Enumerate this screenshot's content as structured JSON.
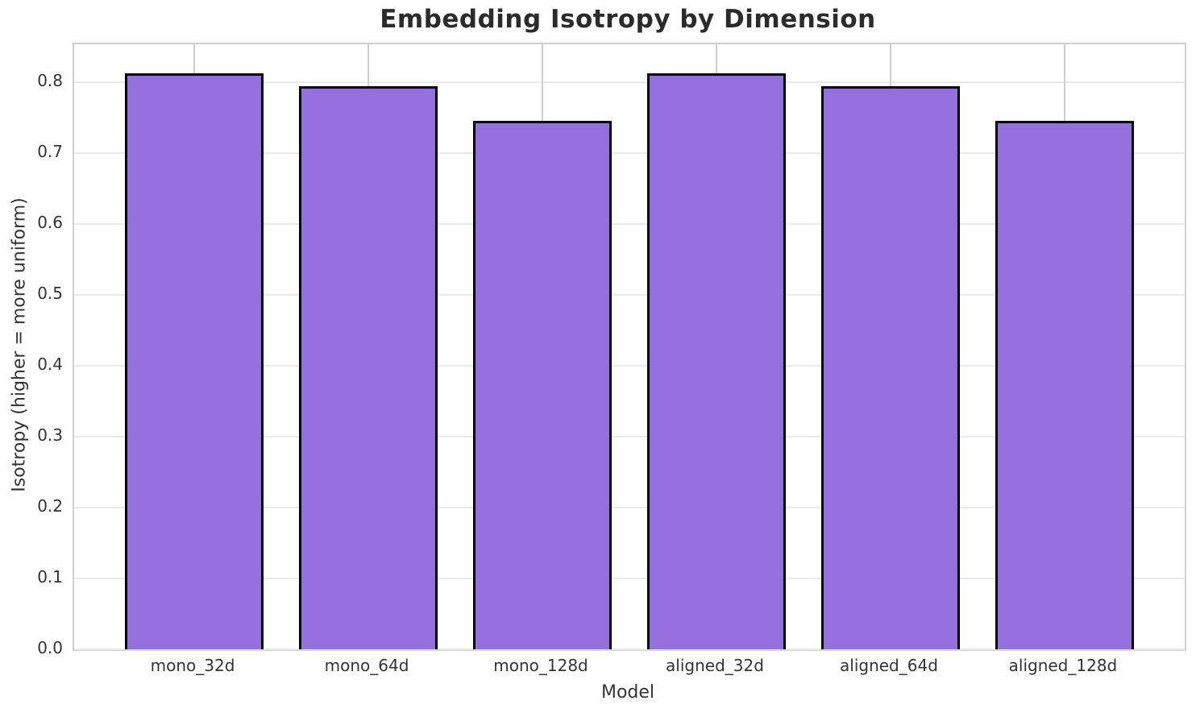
{
  "chart_data": {
    "type": "bar",
    "title": "Embedding Isotropy by Dimension",
    "xlabel": "Model",
    "ylabel": "Isotropy (higher = more uniform)",
    "categories": [
      "mono_32d",
      "mono_64d",
      "mono_128d",
      "aligned_32d",
      "aligned_64d",
      "aligned_128d"
    ],
    "values": [
      0.813,
      0.794,
      0.745,
      0.813,
      0.794,
      0.745
    ],
    "ylim": [
      0,
      0.8534
    ],
    "xlim": [
      -0.69,
      5.69
    ],
    "bar_width": 0.8,
    "yticks": [
      0.0,
      0.1,
      0.2,
      0.3,
      0.4,
      0.5,
      0.6,
      0.7,
      0.8
    ],
    "ytick_labels": [
      "0.0",
      "0.1",
      "0.2",
      "0.3",
      "0.4",
      "0.5",
      "0.6",
      "0.7",
      "0.8"
    ],
    "grid": true,
    "legend": "none",
    "colors": {
      "bar_fill": "#9370DB",
      "bar_edge": "#000000",
      "grid_horizontal": "#e9e9e9",
      "grid_vertical": "#cfcfcf",
      "spine": "#d0d0d0",
      "tick_text": "#333333",
      "title_text": "#2b2b2b",
      "background": "#ffffff"
    }
  }
}
